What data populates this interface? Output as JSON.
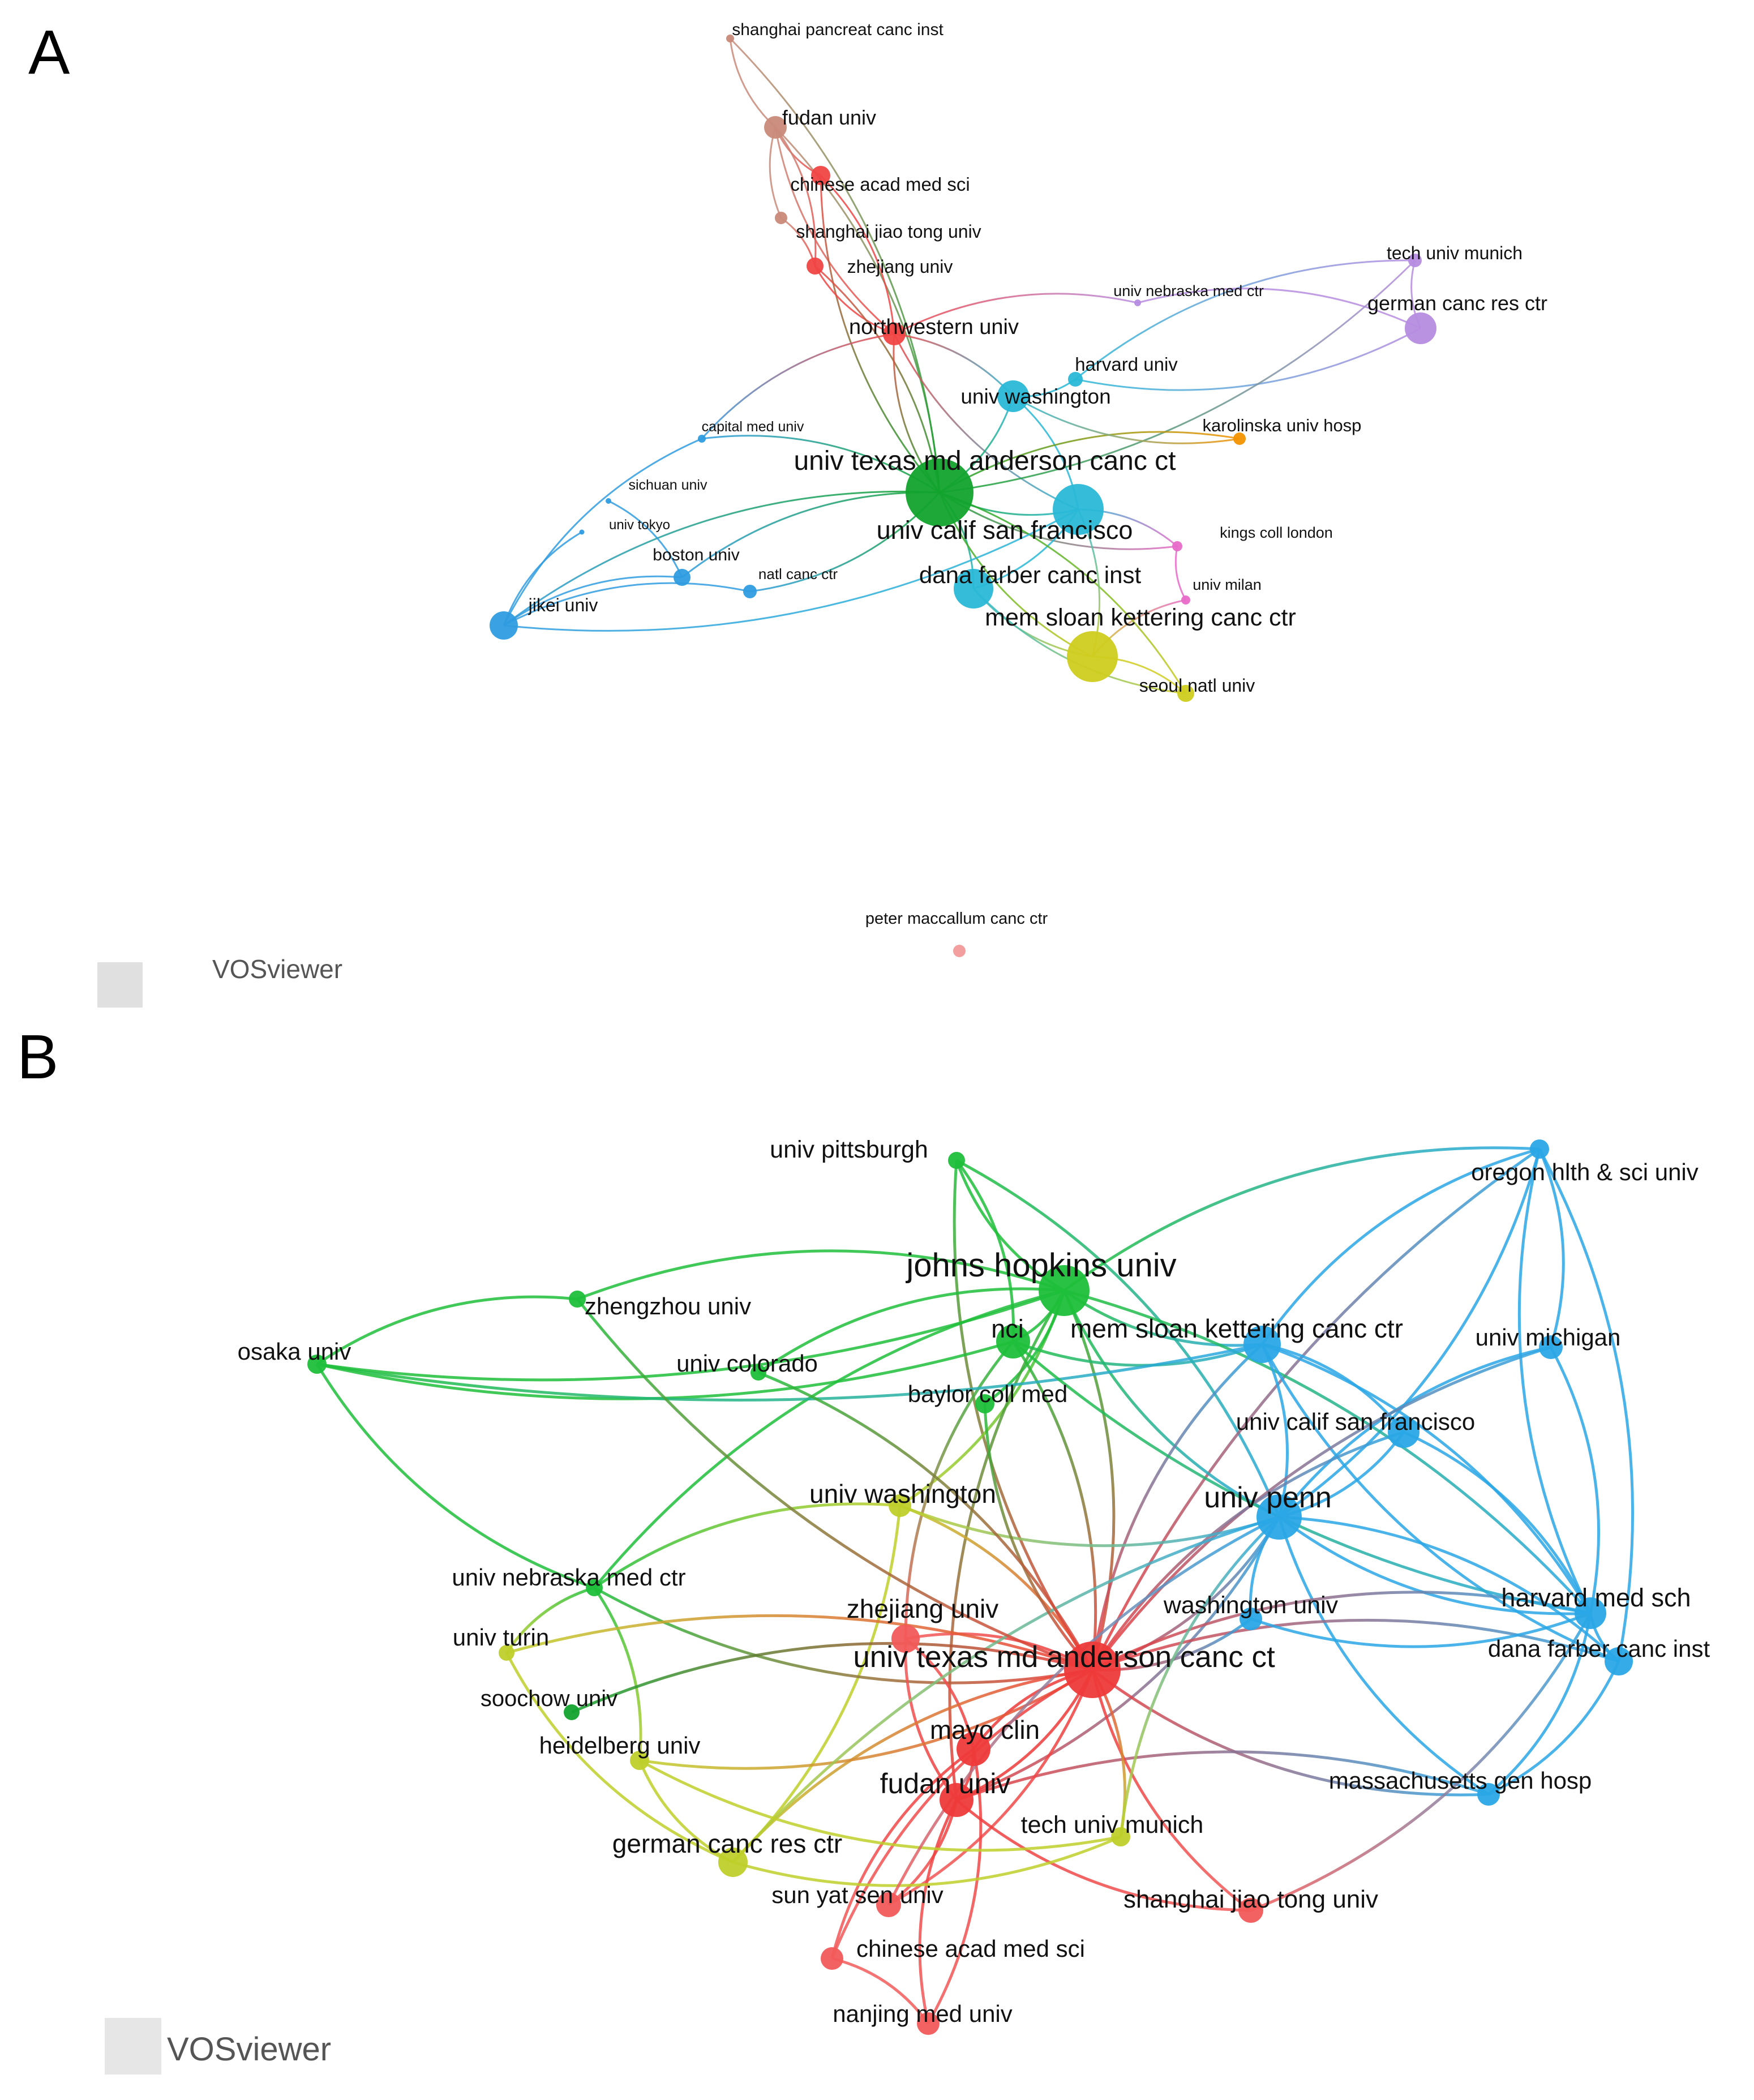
{
  "panels": [
    {
      "letter": "A",
      "brand": "VOSviewer",
      "nodes": [
        {
          "id": "a_spci",
          "label": "shanghai pancreat canc inst",
          "color": "#c98a7a",
          "size": 14,
          "tier": "s"
        },
        {
          "id": "a_fudan",
          "label": "fudan univ",
          "color": "#c98a7a",
          "size": 40,
          "tier": "m"
        },
        {
          "id": "a_cams",
          "label": "chinese acad med sci",
          "color": "#f04545",
          "size": 34,
          "tier": "s"
        },
        {
          "id": "a_sjtu",
          "label": "shanghai jiao tong univ",
          "color": "#c98a7a",
          "size": 22,
          "tier": "s"
        },
        {
          "id": "a_zju",
          "label": "zhejiang univ",
          "color": "#f04545",
          "size": 30,
          "tier": "s"
        },
        {
          "id": "a_nw",
          "label": "northwestern univ",
          "color": "#f04545",
          "size": 40,
          "tier": "m"
        },
        {
          "id": "a_unmc",
          "label": "univ nebraska med ctr",
          "color": "#b68ce0",
          "size": 12,
          "tier": "xs"
        },
        {
          "id": "a_tum",
          "label": "tech univ munich",
          "color": "#b68ce0",
          "size": 24,
          "tier": "s"
        },
        {
          "id": "a_dkfz",
          "label": "german canc res ctr",
          "color": "#b68ce0",
          "size": 56,
          "tier": "m"
        },
        {
          "id": "a_harv",
          "label": "harvard univ",
          "color": "#29b8d6",
          "size": 26,
          "tier": "s"
        },
        {
          "id": "a_uw",
          "label": "univ washington",
          "color": "#29b8d6",
          "size": 56,
          "tier": "m"
        },
        {
          "id": "a_kuh",
          "label": "karolinska univ hosp",
          "color": "#f39200",
          "size": 22,
          "tier": "s"
        },
        {
          "id": "a_cmu",
          "label": "capital med univ",
          "color": "#2f9ce0",
          "size": 14,
          "tier": "xs"
        },
        {
          "id": "a_mda",
          "label": "univ texas md anderson canc ct",
          "color": "#12a32d",
          "size": 120,
          "tier": "l"
        },
        {
          "id": "a_scu",
          "label": "sichuan univ",
          "color": "#2f9ce0",
          "size": 10,
          "tier": "xs"
        },
        {
          "id": "a_tokyo",
          "label": "univ tokyo",
          "color": "#2f9ce0",
          "size": 9,
          "tier": "xs"
        },
        {
          "id": "a_ucsf",
          "label": "univ calif san francisco",
          "color": "#29b8d6",
          "size": 90,
          "tier": "l"
        },
        {
          "id": "a_kcl",
          "label": "kings coll london",
          "color": "#e86ac8",
          "size": 18,
          "tier": "s"
        },
        {
          "id": "a_bu",
          "label": "boston univ",
          "color": "#2f9ce0",
          "size": 30,
          "tier": "s"
        },
        {
          "id": "a_nci",
          "label": "natl canc ctr",
          "color": "#2f9ce0",
          "size": 24,
          "tier": "s"
        },
        {
          "id": "a_dfci",
          "label": "dana farber canc inst",
          "color": "#29b8d6",
          "size": 70,
          "tier": "l"
        },
        {
          "id": "a_milan",
          "label": "univ milan",
          "color": "#e86ac8",
          "size": 16,
          "tier": "s"
        },
        {
          "id": "a_jikei",
          "label": "jikei univ",
          "color": "#2f9ce0",
          "size": 50,
          "tier": "m"
        },
        {
          "id": "a_mskcc",
          "label": "mem sloan kettering canc ctr",
          "color": "#cfcc1f",
          "size": 90,
          "tier": "l"
        },
        {
          "id": "a_snu",
          "label": "seoul natl univ",
          "color": "#cfcc1f",
          "size": 30,
          "tier": "s"
        },
        {
          "id": "a_pmcc",
          "label": "peter maccallum canc ctr",
          "color": "#f39a9a",
          "size": 22,
          "tier": "s"
        }
      ],
      "edges": [
        [
          "a_spci",
          "a_fudan"
        ],
        [
          "a_spci",
          "a_mda"
        ],
        [
          "a_fudan",
          "a_cams"
        ],
        [
          "a_fudan",
          "a_zju"
        ],
        [
          "a_fudan",
          "a_nw"
        ],
        [
          "a_fudan",
          "a_mda"
        ],
        [
          "a_fudan",
          "a_sjtu"
        ],
        [
          "a_cams",
          "a_nw"
        ],
        [
          "a_cams",
          "a_mda"
        ],
        [
          "a_sjtu",
          "a_zju"
        ],
        [
          "a_zju",
          "a_nw"
        ],
        [
          "a_zju",
          "a_mda"
        ],
        [
          "a_nw",
          "a_mda"
        ],
        [
          "a_nw",
          "a_uw"
        ],
        [
          "a_nw",
          "a_ucsf"
        ],
        [
          "a_uw",
          "a_mda"
        ],
        [
          "a_uw",
          "a_harv"
        ],
        [
          "a_uw",
          "a_ucsf"
        ],
        [
          "a_harv",
          "a_dkfz"
        ],
        [
          "a_harv",
          "a_tum"
        ],
        [
          "a_unmc",
          "a_nw"
        ],
        [
          "a_unmc",
          "a_dkfz"
        ],
        [
          "a_tum",
          "a_dkfz"
        ],
        [
          "a_tum",
          "a_mda"
        ],
        [
          "a_kuh",
          "a_mda"
        ],
        [
          "a_kuh",
          "a_uw"
        ],
        [
          "a_kcl",
          "a_ucsf"
        ],
        [
          "a_kcl",
          "a_mda"
        ],
        [
          "a_milan",
          "a_mskcc"
        ],
        [
          "a_milan",
          "a_kcl"
        ],
        [
          "a_mda",
          "a_ucsf"
        ],
        [
          "a_mda",
          "a_dfci"
        ],
        [
          "a_mda",
          "a_mskcc"
        ],
        [
          "a_ucsf",
          "a_dfci"
        ],
        [
          "a_dfci",
          "a_mskcc"
        ],
        [
          "a_mskcc",
          "a_snu"
        ],
        [
          "a_snu",
          "a_mda"
        ],
        [
          "a_bu",
          "a_mda"
        ],
        [
          "a_bu",
          "a_jikei"
        ],
        [
          "a_jikei",
          "a_nci"
        ],
        [
          "a_nci",
          "a_mda"
        ],
        [
          "a_jikei",
          "a_mda"
        ],
        [
          "a_jikei",
          "a_ucsf"
        ],
        [
          "a_cmu",
          "a_mda"
        ],
        [
          "a_cmu",
          "a_jikei"
        ],
        [
          "a_scu",
          "a_bu"
        ],
        [
          "a_tokyo",
          "a_jikei"
        ],
        [
          "a_cmu",
          "a_nw"
        ],
        [
          "a_dfci",
          "a_snu"
        ],
        [
          "a_ucsf",
          "a_mskcc"
        ]
      ]
    },
    {
      "letter": "B",
      "brand": "VOSviewer",
      "nodes": [
        {
          "id": "b_pitt",
          "label": "univ pittsburgh",
          "color": "#1fbf3a",
          "size": 30,
          "tier": "m"
        },
        {
          "id": "b_ohsu",
          "label": "oregon hlth & sci univ",
          "color": "#2aa7e6",
          "size": 34,
          "tier": "m"
        },
        {
          "id": "b_jhu",
          "label": "johns hopkins univ",
          "color": "#1fbf3a",
          "size": 90,
          "tier": "l"
        },
        {
          "id": "b_zzu",
          "label": "zhengzhou univ",
          "color": "#1fbf3a",
          "size": 30,
          "tier": "m"
        },
        {
          "id": "b_nci",
          "label": "nci",
          "color": "#1fbf3a",
          "size": 60,
          "tier": "l"
        },
        {
          "id": "b_mskcc",
          "label": "mem sloan kettering canc ctr",
          "color": "#2aa7e6",
          "size": 66,
          "tier": "l"
        },
        {
          "id": "b_osaka",
          "label": "osaka univ",
          "color": "#1fbf3a",
          "size": 34,
          "tier": "m"
        },
        {
          "id": "b_colo",
          "label": "univ colorado",
          "color": "#1fbf3a",
          "size": 28,
          "tier": "m"
        },
        {
          "id": "b_umich",
          "label": "univ michigan",
          "color": "#2aa7e6",
          "size": 42,
          "tier": "m"
        },
        {
          "id": "b_bcm",
          "label": "baylor coll med",
          "color": "#1fbf3a",
          "size": 34,
          "tier": "m"
        },
        {
          "id": "b_ucsf",
          "label": "univ calif san francisco",
          "color": "#2aa7e6",
          "size": 56,
          "tier": "m"
        },
        {
          "id": "b_uw",
          "label": "univ washington",
          "color": "#bfcf2a",
          "size": 40,
          "tier": "m"
        },
        {
          "id": "b_penn",
          "label": "univ penn",
          "color": "#2aa7e6",
          "size": 80,
          "tier": "l"
        },
        {
          "id": "b_unmc",
          "label": "univ nebraska med ctr",
          "color": "#1fbf3a",
          "size": 30,
          "tier": "m"
        },
        {
          "id": "b_hms",
          "label": "harvard med sch",
          "color": "#2aa7e6",
          "size": 56,
          "tier": "m"
        },
        {
          "id": "b_zju",
          "label": "zhejiang univ",
          "color": "#f25a5a",
          "size": 50,
          "tier": "m"
        },
        {
          "id": "b_wustl",
          "label": "washington univ",
          "color": "#2aa7e6",
          "size": 40,
          "tier": "m"
        },
        {
          "id": "b_turin",
          "label": "univ turin",
          "color": "#bfcf2a",
          "size": 28,
          "tier": "m"
        },
        {
          "id": "b_dfci",
          "label": "dana farber canc inst",
          "color": "#2aa7e6",
          "size": 50,
          "tier": "m"
        },
        {
          "id": "b_mda",
          "label": "univ texas md anderson canc ct",
          "color": "#ee3a3a",
          "size": 100,
          "tier": "l"
        },
        {
          "id": "b_soochow",
          "label": "soochow univ",
          "color": "#12a32d",
          "size": 28,
          "tier": "m"
        },
        {
          "id": "b_heid",
          "label": "heidelberg univ",
          "color": "#bfcf2a",
          "size": 34,
          "tier": "m"
        },
        {
          "id": "b_mayo",
          "label": "mayo clin",
          "color": "#ee3a3a",
          "size": 60,
          "tier": "l"
        },
        {
          "id": "b_fudan",
          "label": "fudan univ",
          "color": "#ee3a3a",
          "size": 60,
          "tier": "l"
        },
        {
          "id": "b_mgh",
          "label": "massachusetts gen hosp",
          "color": "#2aa7e6",
          "size": 40,
          "tier": "m"
        },
        {
          "id": "b_tum",
          "label": "tech univ munich",
          "color": "#bfcf2a",
          "size": 34,
          "tier": "m"
        },
        {
          "id": "b_dkfz",
          "label": "german canc res ctr",
          "color": "#bfcf2a",
          "size": 52,
          "tier": "m"
        },
        {
          "id": "b_sysu",
          "label": "sun yat sen univ",
          "color": "#f25a5a",
          "size": 44,
          "tier": "m"
        },
        {
          "id": "b_sjtu",
          "label": "shanghai jiao tong univ",
          "color": "#f25a5a",
          "size": 44,
          "tier": "m"
        },
        {
          "id": "b_cams",
          "label": "chinese acad med sci",
          "color": "#f25a5a",
          "size": 40,
          "tier": "m"
        },
        {
          "id": "b_njmu",
          "label": "nanjing med univ",
          "color": "#f25a5a",
          "size": 40,
          "tier": "m"
        }
      ],
      "edges": [
        [
          "b_pitt",
          "b_jhu"
        ],
        [
          "b_pitt",
          "b_nci"
        ],
        [
          "b_pitt",
          "b_mda"
        ],
        [
          "b_pitt",
          "b_penn"
        ],
        [
          "b_ohsu",
          "b_jhu"
        ],
        [
          "b_ohsu",
          "b_penn"
        ],
        [
          "b_ohsu",
          "b_hms"
        ],
        [
          "b_ohsu",
          "b_dfci"
        ],
        [
          "b_ohsu",
          "b_mskcc"
        ],
        [
          "b_ohsu",
          "b_umich"
        ],
        [
          "b_ohsu",
          "b_mda"
        ],
        [
          "b_jhu",
          "b_osaka"
        ],
        [
          "b_jhu",
          "b_zzu"
        ],
        [
          "b_jhu",
          "b_nci"
        ],
        [
          "b_jhu",
          "b_mskcc"
        ],
        [
          "b_jhu",
          "b_mda"
        ],
        [
          "b_jhu",
          "b_penn"
        ],
        [
          "b_jhu",
          "b_uw"
        ],
        [
          "b_jhu",
          "b_unmc"
        ],
        [
          "b_jhu",
          "b_hms"
        ],
        [
          "b_jhu",
          "b_colo"
        ],
        [
          "b_jhu",
          "b_bcm"
        ],
        [
          "b_jhu",
          "b_fudan"
        ],
        [
          "b_nci",
          "b_mda"
        ],
        [
          "b_nci",
          "b_mskcc"
        ],
        [
          "b_nci",
          "b_osaka"
        ],
        [
          "b_nci",
          "b_zju"
        ],
        [
          "b_mskcc",
          "b_penn"
        ],
        [
          "b_mskcc",
          "b_mda"
        ],
        [
          "b_mskcc",
          "b_hms"
        ],
        [
          "b_mskcc",
          "b_dfci"
        ],
        [
          "b_mskcc",
          "b_ucsf"
        ],
        [
          "b_umich",
          "b_penn"
        ],
        [
          "b_umich",
          "b_hms"
        ],
        [
          "b_umich",
          "b_mda"
        ],
        [
          "b_ucsf",
          "b_penn"
        ],
        [
          "b_ucsf",
          "b_mda"
        ],
        [
          "b_ucsf",
          "b_hms"
        ],
        [
          "b_penn",
          "b_hms"
        ],
        [
          "b_penn",
          "b_dfci"
        ],
        [
          "b_penn",
          "b_mgh"
        ],
        [
          "b_penn",
          "b_mda"
        ],
        [
          "b_penn",
          "b_wustl"
        ],
        [
          "b_penn",
          "b_fudan"
        ],
        [
          "b_hms",
          "b_dfci"
        ],
        [
          "b_hms",
          "b_mgh"
        ],
        [
          "b_hms",
          "b_mda"
        ],
        [
          "b_dfci",
          "b_mgh"
        ],
        [
          "b_dfci",
          "b_mda"
        ],
        [
          "b_mgh",
          "b_mda"
        ],
        [
          "b_mgh",
          "b_fudan"
        ],
        [
          "b_wustl",
          "b_mda"
        ],
        [
          "b_wustl",
          "b_hms"
        ],
        [
          "b_uw",
          "b_mda"
        ],
        [
          "b_uw",
          "b_unmc"
        ],
        [
          "b_uw",
          "b_dkfz"
        ],
        [
          "b_uw",
          "b_penn"
        ],
        [
          "b_unmc",
          "b_osaka"
        ],
        [
          "b_unmc",
          "b_turin"
        ],
        [
          "b_unmc",
          "b_heid"
        ],
        [
          "b_unmc",
          "b_mda"
        ],
        [
          "b_osaka",
          "b_zzu"
        ],
        [
          "b_osaka",
          "b_mskcc"
        ],
        [
          "b_zju",
          "b_mda"
        ],
        [
          "b_zju",
          "b_fudan"
        ],
        [
          "b_zju",
          "b_mayo"
        ],
        [
          "b_mda",
          "b_mayo"
        ],
        [
          "b_mda",
          "b_fudan"
        ],
        [
          "b_mda",
          "b_sjtu"
        ],
        [
          "b_mda",
          "b_sysu"
        ],
        [
          "b_mda",
          "b_cams"
        ],
        [
          "b_mda",
          "b_tum"
        ],
        [
          "b_mda",
          "b_dkfz"
        ],
        [
          "b_mda",
          "b_heid"
        ],
        [
          "b_mda",
          "b_turin"
        ],
        [
          "b_mayo",
          "b_fudan"
        ],
        [
          "b_mayo",
          "b_cams"
        ],
        [
          "b_mayo",
          "b_njmu"
        ],
        [
          "b_fudan",
          "b_sjtu"
        ],
        [
          "b_fudan",
          "b_sysu"
        ],
        [
          "b_fudan",
          "b_njmu"
        ],
        [
          "b_dkfz",
          "b_heid"
        ],
        [
          "b_dkfz",
          "b_tum"
        ],
        [
          "b_dkfz",
          "b_penn"
        ],
        [
          "b_heid",
          "b_tum"
        ],
        [
          "b_tum",
          "b_penn"
        ],
        [
          "b_sjtu",
          "b_hms"
        ],
        [
          "b_cams",
          "b_njmu"
        ],
        [
          "b_bcm",
          "b_mda"
        ],
        [
          "b_colo",
          "b_mda"
        ],
        [
          "b_zzu",
          "b_mda"
        ],
        [
          "b_soochow",
          "b_mda"
        ],
        [
          "b_turin",
          "b_dkfz"
        ],
        [
          "b_sysu",
          "b_penn"
        ],
        [
          "b_nci",
          "b_hms"
        ]
      ]
    }
  ]
}
